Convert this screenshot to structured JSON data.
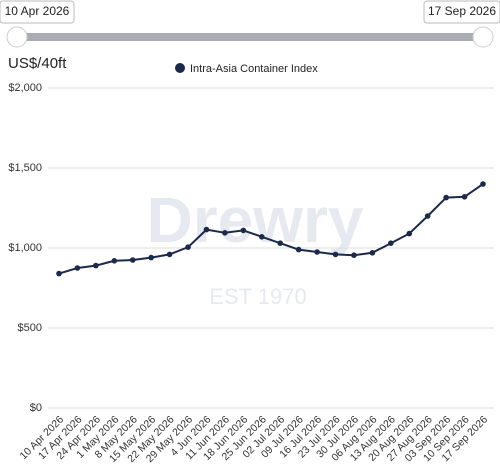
{
  "slider": {
    "start": "10 Apr 2026",
    "end": "17 Sep 2026"
  },
  "chart_data": {
    "type": "line",
    "y_label": "US$/40ft",
    "watermark": {
      "brand": "Drewry",
      "tagline": "EST 1970"
    },
    "categories": [
      "10 Apr 2026",
      "17 Apr 2026",
      "24 Apr 2026",
      "1 May 2026",
      "8 May 2026",
      "15 May 2026",
      "22 May 2026",
      "29 May 2026",
      "4 Jun 2026",
      "11 Jun 2026",
      "18 Jun 2026",
      "25 Jun 2026",
      "02 Jul 2026",
      "09 Jul 2026",
      "16 Jul 2026",
      "23 Jul 2026",
      "30 Jul 2026",
      "06 Aug 2026",
      "13 Aug 2026",
      "20 Aug 2026",
      "27 Aug 2026",
      "03 Sep 2026",
      "10 Sep 2026",
      "17 Sep 2026"
    ],
    "series": [
      {
        "name": "Intra-Asia Container Index",
        "color": "#1b2a4a",
        "values": [
          840,
          875,
          890,
          920,
          925,
          940,
          960,
          1005,
          1115,
          1095,
          1110,
          1070,
          1030,
          990,
          975,
          960,
          955,
          970,
          1030,
          1090,
          1200,
          1315,
          1320,
          1400
        ]
      }
    ],
    "ylim": [
      0,
      2000
    ],
    "yticks": [
      {
        "value": 0,
        "label": "$0"
      },
      {
        "value": 500,
        "label": "$500"
      },
      {
        "value": 1000,
        "label": "$1,000"
      },
      {
        "value": 1500,
        "label": "$1,500"
      },
      {
        "value": 2000,
        "label": "$2,000"
      }
    ],
    "grid": true
  }
}
